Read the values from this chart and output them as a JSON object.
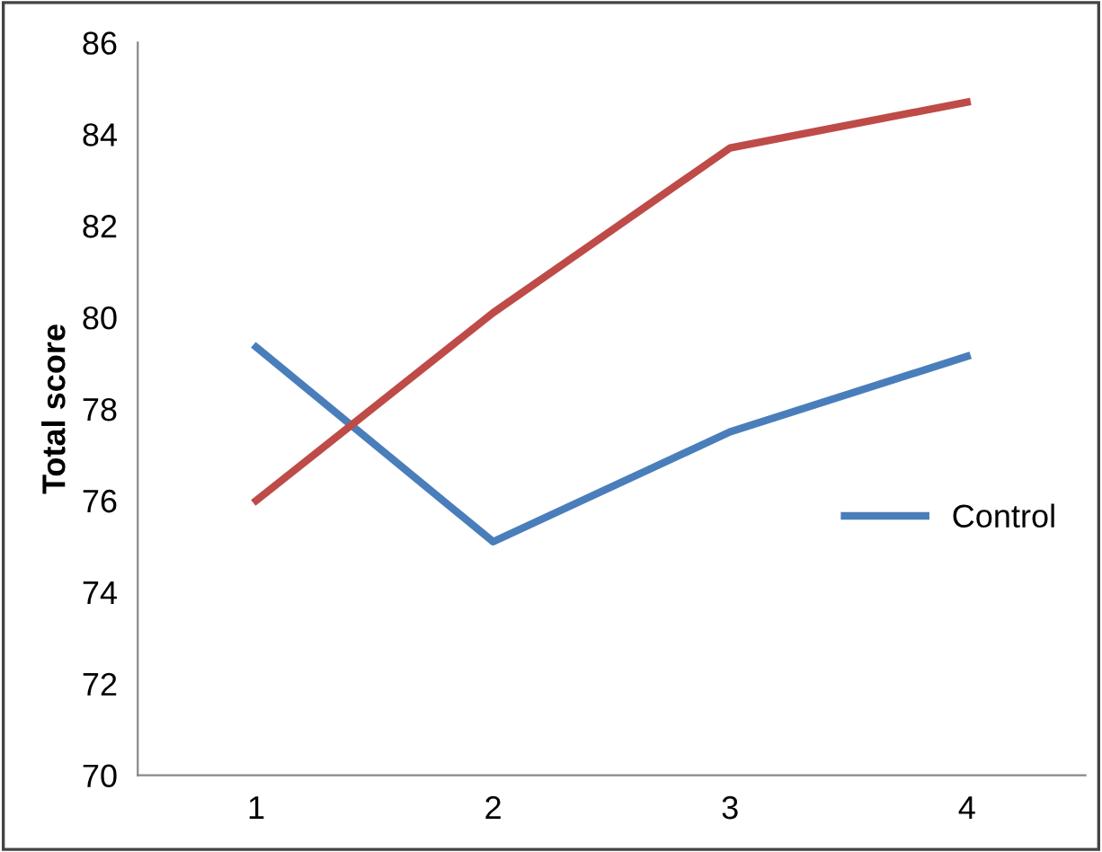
{
  "chart_data": {
    "type": "line",
    "ylabel": "Total score",
    "categories": [
      "1",
      "2",
      "3",
      "4"
    ],
    "series": [
      {
        "name": "Control",
        "color": "#4a7ebb",
        "values": [
          79.35,
          75.1,
          77.5,
          79.15
        ]
      },
      {
        "color": "#be4b48",
        "values": [
          76.0,
          80.1,
          83.7,
          84.7
        ]
      }
    ],
    "ylim": [
      70,
      86
    ],
    "yticks": [
      70,
      72,
      74,
      76,
      78,
      80,
      82,
      84,
      86
    ],
    "grid": false,
    "legend": "right",
    "marker": "none",
    "line_style": "solid"
  }
}
